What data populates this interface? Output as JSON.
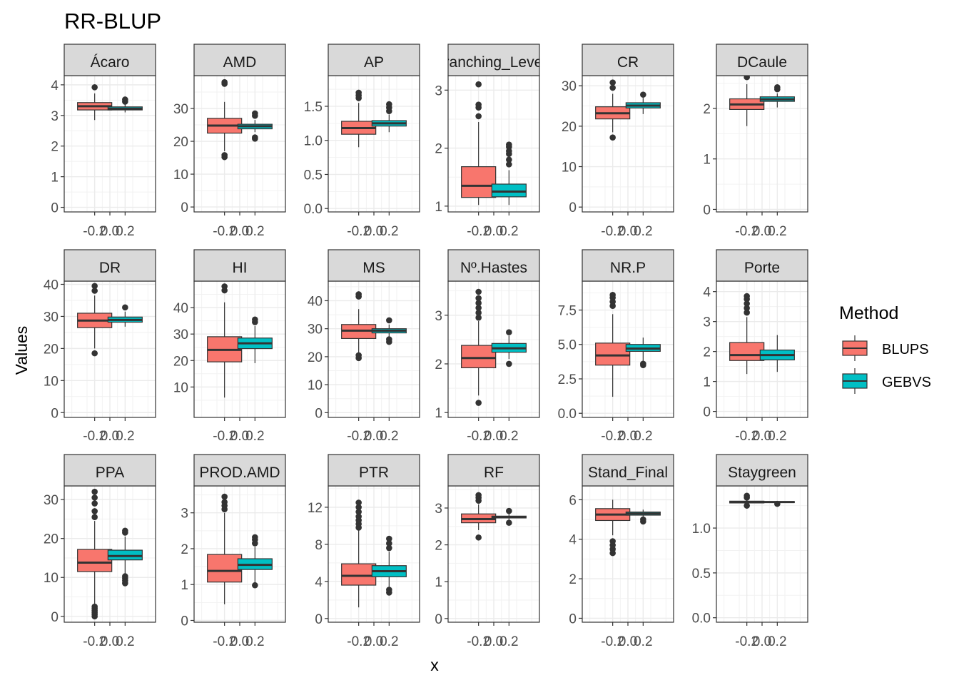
{
  "chart_data": {
    "type": "boxplot",
    "title": "RR-BLUP",
    "xlabel": "x",
    "ylabel": "Values",
    "x_ticks": [
      "-0.2",
      "0.0",
      "0.2"
    ],
    "legend": {
      "title": "Method",
      "position": "right",
      "items": [
        {
          "name": "BLUPS",
          "color": "#F8766D"
        },
        {
          "name": "GEBVS",
          "color": "#00BFC4"
        }
      ]
    },
    "panels": [
      {
        "name": "Ácaro",
        "ylim": [
          -0.15,
          4.3
        ],
        "y_ticks": [
          0,
          1,
          2,
          3,
          4
        ],
        "series": [
          {
            "method": "BLUPS",
            "min": 2.85,
            "q1": 3.18,
            "median": 3.3,
            "q3": 3.42,
            "max": 3.72,
            "outliers": [
              3.92
            ]
          },
          {
            "method": "GEBVS",
            "min": 3.1,
            "q1": 3.18,
            "median": 3.22,
            "q3": 3.28,
            "max": 3.38,
            "outliers": [
              3.45,
              3.52
            ]
          }
        ]
      },
      {
        "name": "AMD",
        "ylim": [
          -1.5,
          40
        ],
        "y_ticks": [
          0,
          10,
          20,
          30
        ],
        "series": [
          {
            "method": "BLUPS",
            "min": 17,
            "q1": 22.5,
            "median": 24.8,
            "q3": 27,
            "max": 32,
            "outliers": [
              15.2,
              15.8,
              37.5,
              38
            ]
          },
          {
            "method": "GEBVS",
            "min": 22.8,
            "q1": 23.8,
            "median": 24.6,
            "q3": 25.2,
            "max": 26.5,
            "outliers": [
              20.8,
              21.2,
              27.8,
              28.5
            ]
          }
        ]
      },
      {
        "name": "AP",
        "ylim": [
          -0.05,
          1.95
        ],
        "y_ticks": [
          0.0,
          0.5,
          1.0,
          1.5
        ],
        "series": [
          {
            "method": "BLUPS",
            "min": 0.9,
            "q1": 1.09,
            "median": 1.18,
            "q3": 1.28,
            "max": 1.55,
            "outliers": [
              1.62,
              1.66,
              1.7
            ]
          },
          {
            "method": "GEBVS",
            "min": 1.12,
            "q1": 1.21,
            "median": 1.25,
            "q3": 1.29,
            "max": 1.38,
            "outliers": [
              1.43,
              1.48,
              1.53
            ]
          }
        ]
      },
      {
        "name": "Branching_Levels",
        "ylim": [
          0.9,
          3.25
        ],
        "y_ticks": [
          1,
          2,
          3
        ],
        "series": [
          {
            "method": "BLUPS",
            "min": 1.02,
            "q1": 1.15,
            "median": 1.35,
            "q3": 1.68,
            "max": 2.45,
            "outliers": [
              2.55,
              2.7,
              2.75,
              3.1
            ]
          },
          {
            "method": "GEBVS",
            "min": 1.02,
            "q1": 1.16,
            "median": 1.25,
            "q3": 1.38,
            "max": 1.62,
            "outliers": [
              1.72,
              1.8,
              1.9,
              1.95,
              2.02,
              2.06
            ]
          }
        ]
      },
      {
        "name": "CR",
        "ylim": [
          -1.2,
          32.5
        ],
        "y_ticks": [
          0,
          10,
          20,
          30
        ],
        "series": [
          {
            "method": "BLUPS",
            "min": 18.5,
            "q1": 21.8,
            "median": 23.2,
            "q3": 24.8,
            "max": 28,
            "outliers": [
              17.2,
              29.5,
              30.8
            ]
          },
          {
            "method": "GEBVS",
            "min": 23,
            "q1": 24.5,
            "median": 25.1,
            "q3": 25.8,
            "max": 27,
            "outliers": [
              27.8
            ]
          }
        ]
      },
      {
        "name": "DCaule",
        "ylim": [
          -0.05,
          2.65
        ],
        "y_ticks": [
          0,
          1,
          2
        ],
        "series": [
          {
            "method": "BLUPS",
            "min": 1.65,
            "q1": 1.98,
            "median": 2.08,
            "q3": 2.19,
            "max": 2.48,
            "outliers": [
              2.62
            ]
          },
          {
            "method": "GEBVS",
            "min": 2.02,
            "q1": 2.14,
            "median": 2.18,
            "q3": 2.23,
            "max": 2.3,
            "outliers": [
              2.38,
              2.42
            ]
          }
        ]
      },
      {
        "name": "DR",
        "ylim": [
          -1.5,
          41
        ],
        "y_ticks": [
          0,
          10,
          20,
          30,
          40
        ],
        "series": [
          {
            "method": "BLUPS",
            "min": 20,
            "q1": 26.5,
            "median": 28.7,
            "q3": 31,
            "max": 36.5,
            "outliers": [
              18.5,
              38,
              39.5
            ]
          },
          {
            "method": "GEBVS",
            "min": 26.8,
            "q1": 28.2,
            "median": 28.9,
            "q3": 29.8,
            "max": 31.5,
            "outliers": [
              32.8
            ]
          }
        ]
      },
      {
        "name": "HI",
        "ylim": [
          -1.5,
          50
        ],
        "y_ticks": [
          10,
          20,
          30,
          40
        ],
        "series": [
          {
            "method": "BLUPS",
            "min": 6,
            "q1": 19.5,
            "median": 24,
            "q3": 29,
            "max": 42,
            "outliers": [
              46.5,
              48
            ]
          },
          {
            "method": "GEBVS",
            "min": 19,
            "q1": 24.5,
            "median": 26.5,
            "q3": 28.5,
            "max": 33,
            "outliers": [
              34.5,
              35.5
            ]
          }
        ]
      },
      {
        "name": "MS",
        "ylim": [
          -1.7,
          47
        ],
        "y_ticks": [
          0,
          10,
          20,
          30,
          40
        ],
        "series": [
          {
            "method": "BLUPS",
            "min": 21.5,
            "q1": 26.5,
            "median": 29.3,
            "q3": 31.5,
            "max": 37,
            "outliers": [
              19.5,
              20.5,
              41.5,
              42.3
            ]
          },
          {
            "method": "GEBVS",
            "min": 27,
            "q1": 28.5,
            "median": 29.3,
            "q3": 30,
            "max": 31.5,
            "outliers": [
              25.3,
              26.2,
              33
            ]
          }
        ]
      },
      {
        "name": "Nº.Hastes",
        "ylim": [
          0.9,
          3.7
        ],
        "y_ticks": [
          1,
          2,
          3
        ],
        "series": [
          {
            "method": "BLUPS",
            "min": 1.35,
            "q1": 1.92,
            "median": 2.12,
            "q3": 2.38,
            "max": 2.88,
            "outliers": [
              1.2,
              2.95,
              3.05,
              3.15,
              3.25,
              3.35,
              3.48
            ]
          },
          {
            "method": "GEBVS",
            "min": 2.1,
            "q1": 2.24,
            "median": 2.32,
            "q3": 2.42,
            "max": 2.58,
            "outliers": [
              2.0,
              2.65
            ]
          }
        ]
      },
      {
        "name": "NR.P",
        "ylim": [
          -0.3,
          9.6
        ],
        "y_ticks": [
          0.0,
          2.5,
          5.0,
          7.5
        ],
        "series": [
          {
            "method": "BLUPS",
            "min": 1.2,
            "q1": 3.5,
            "median": 4.2,
            "q3": 5.1,
            "max": 7.2,
            "outliers": [
              7.8,
              8.1,
              8.4,
              8.6
            ]
          },
          {
            "method": "GEBVS",
            "min": 3.8,
            "q1": 4.5,
            "median": 4.7,
            "q3": 5.0,
            "max": 5.5,
            "outliers": [
              3.5,
              3.6
            ]
          }
        ]
      },
      {
        "name": "Porte",
        "ylim": [
          -0.2,
          4.35
        ],
        "y_ticks": [
          0,
          1,
          2,
          3,
          4
        ],
        "series": [
          {
            "method": "BLUPS",
            "min": 1.25,
            "q1": 1.7,
            "median": 1.88,
            "q3": 2.3,
            "max": 3.15,
            "outliers": [
              3.3,
              3.45,
              3.6,
              3.75,
              3.85
            ]
          },
          {
            "method": "GEBVS",
            "min": 1.32,
            "q1": 1.72,
            "median": 1.88,
            "q3": 2.05,
            "max": 2.55,
            "outliers": []
          }
        ]
      },
      {
        "name": "PPA",
        "ylim": [
          -1.5,
          33.5
        ],
        "y_ticks": [
          0,
          10,
          20,
          30
        ],
        "series": [
          {
            "method": "BLUPS",
            "min": 3,
            "q1": 11.5,
            "median": 13.8,
            "q3": 17.2,
            "max": 24.5,
            "outliers": [
              0,
              0.5,
              1,
              1.5,
              2,
              2.5,
              25.5,
              27,
              29,
              30.5,
              32
            ]
          },
          {
            "method": "GEBVS",
            "min": 11,
            "q1": 14.5,
            "median": 15.5,
            "q3": 17,
            "max": 20.5,
            "outliers": [
              8.5,
              9.2,
              9.8,
              10.3,
              21.5,
              22
            ]
          }
        ]
      },
      {
        "name": "PROD.AMD",
        "ylim": [
          -0.05,
          3.75
        ],
        "y_ticks": [
          0,
          1,
          2,
          3
        ],
        "series": [
          {
            "method": "BLUPS",
            "min": 0.45,
            "q1": 1.07,
            "median": 1.38,
            "q3": 1.84,
            "max": 3.0,
            "outliers": [
              3.1,
              3.2,
              3.3,
              3.45
            ]
          },
          {
            "method": "GEBVS",
            "min": 1.05,
            "q1": 1.42,
            "median": 1.55,
            "q3": 1.72,
            "max": 2.05,
            "outliers": [
              0.98,
              2.15,
              2.25,
              2.32
            ]
          }
        ]
      },
      {
        "name": "PTR",
        "ylim": [
          -0.4,
          14.3
        ],
        "y_ticks": [
          0,
          4,
          8,
          12
        ],
        "series": [
          {
            "method": "BLUPS",
            "min": 1.2,
            "q1": 3.6,
            "median": 4.6,
            "q3": 5.9,
            "max": 9.5,
            "outliers": [
              9.8,
              10.2,
              10.6,
              11,
              11.5,
              12,
              12.5
            ]
          },
          {
            "method": "GEBVS",
            "min": 3.3,
            "q1": 4.5,
            "median": 5.1,
            "q3": 5.7,
            "max": 7.2,
            "outliers": [
              2.8,
              3.1,
              7.6,
              8.1,
              8.6
            ]
          }
        ]
      },
      {
        "name": "RF",
        "ylim": [
          -0.1,
          3.6
        ],
        "y_ticks": [
          0,
          1,
          2,
          3
        ],
        "series": [
          {
            "method": "BLUPS",
            "min": 2.4,
            "q1": 2.6,
            "median": 2.7,
            "q3": 2.84,
            "max": 3.1,
            "outliers": [
              2.2,
              3.2,
              3.28,
              3.35
            ]
          },
          {
            "method": "GEBVS",
            "min": 2.68,
            "q1": 2.73,
            "median": 2.75,
            "q3": 2.78,
            "max": 2.85,
            "outliers": [
              2.6,
              2.92
            ]
          }
        ]
      },
      {
        "name": "Stand_Final",
        "ylim": [
          -0.2,
          6.7
        ],
        "y_ticks": [
          0,
          2,
          4,
          6
        ],
        "series": [
          {
            "method": "BLUPS",
            "min": 4.2,
            "q1": 4.95,
            "median": 5.25,
            "q3": 5.55,
            "max": 6.0,
            "outliers": [
              3.3,
              3.5,
              3.7,
              3.9
            ]
          },
          {
            "method": "GEBVS",
            "min": 5.1,
            "q1": 5.22,
            "median": 5.3,
            "q3": 5.38,
            "max": 5.5,
            "outliers": [
              4.9,
              5.0
            ]
          }
        ]
      },
      {
        "name": "Staygreen",
        "ylim": [
          -0.05,
          1.47
        ],
        "y_ticks": [
          0.0,
          0.5,
          1.0
        ],
        "series": [
          {
            "method": "BLUPS",
            "min": 1.27,
            "q1": 1.28,
            "median": 1.29,
            "q3": 1.3,
            "max": 1.32,
            "outliers": [
              1.25,
              1.34,
              1.36
            ]
          },
          {
            "method": "GEBVS",
            "min": 1.28,
            "q1": 1.285,
            "median": 1.29,
            "q3": 1.295,
            "max": 1.3,
            "outliers": [
              1.27
            ]
          }
        ]
      }
    ]
  }
}
